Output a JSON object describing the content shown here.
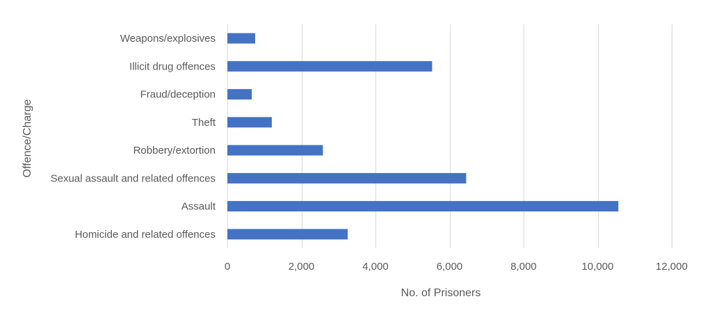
{
  "chart_data": {
    "type": "bar",
    "orientation": "horizontal",
    "title": "",
    "xlabel": "No. of Prisoners",
    "ylabel": "Offence/Charge",
    "categories": [
      "Weapons/explosives",
      "Illicit drug offences",
      "Fraud/deception",
      "Theft",
      "Robbery/extortion",
      "Sexual assault and related offences",
      "Assault",
      "Homicide and related offences"
    ],
    "values": [
      750,
      5530,
      660,
      1200,
      2580,
      6450,
      10560,
      3250
    ],
    "xlim": [
      0,
      12000
    ],
    "xticks": [
      0,
      2000,
      4000,
      6000,
      8000,
      10000,
      12000
    ],
    "xtick_labels": [
      "0",
      "2,000",
      "4,000",
      "6,000",
      "8,000",
      "10,000",
      "12,000"
    ],
    "grid": "vertical",
    "legend": "none",
    "bar_color": "#4472c4"
  }
}
